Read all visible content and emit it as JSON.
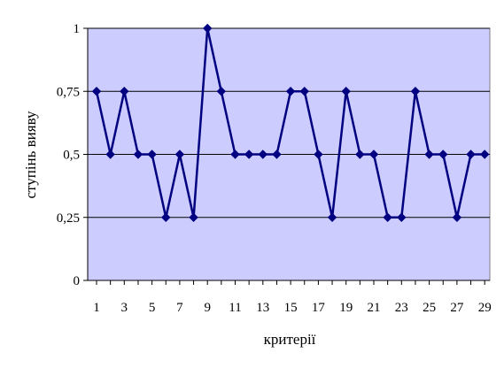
{
  "chart_data": {
    "type": "line",
    "title": "",
    "xlabel": "критерії",
    "ylabel": "ступінь вияву",
    "x": [
      1,
      2,
      3,
      4,
      5,
      6,
      7,
      8,
      9,
      10,
      11,
      12,
      13,
      14,
      15,
      16,
      17,
      18,
      19,
      20,
      21,
      22,
      23,
      24,
      25,
      26,
      27,
      28,
      29
    ],
    "x_tick_labels": [
      "1",
      "3",
      "5",
      "7",
      "9",
      "11",
      "13",
      "15",
      "17",
      "19",
      "21",
      "23",
      "25",
      "27",
      "29"
    ],
    "y_tick_labels": [
      "0",
      "0,25",
      "0,5",
      "0,75",
      "1"
    ],
    "ylim": [
      0,
      1
    ],
    "xlim": [
      1,
      29
    ],
    "grid": "horizontal",
    "legend": "none",
    "series": [
      {
        "values": [
          0.75,
          0.5,
          0.75,
          0.5,
          0.5,
          0.25,
          0.5,
          0.25,
          1,
          0.75,
          0.5,
          0.5,
          0.5,
          0.5,
          0.75,
          0.75,
          0.5,
          0.25,
          0.75,
          0.5,
          0.5,
          0.25,
          0.25,
          0.75,
          0.5,
          0.5,
          0.25,
          0.5,
          0.5
        ],
        "color": "#000080",
        "marker": "diamond"
      }
    ],
    "plot_background": "#ccccff",
    "gridline_color": "#000000"
  }
}
